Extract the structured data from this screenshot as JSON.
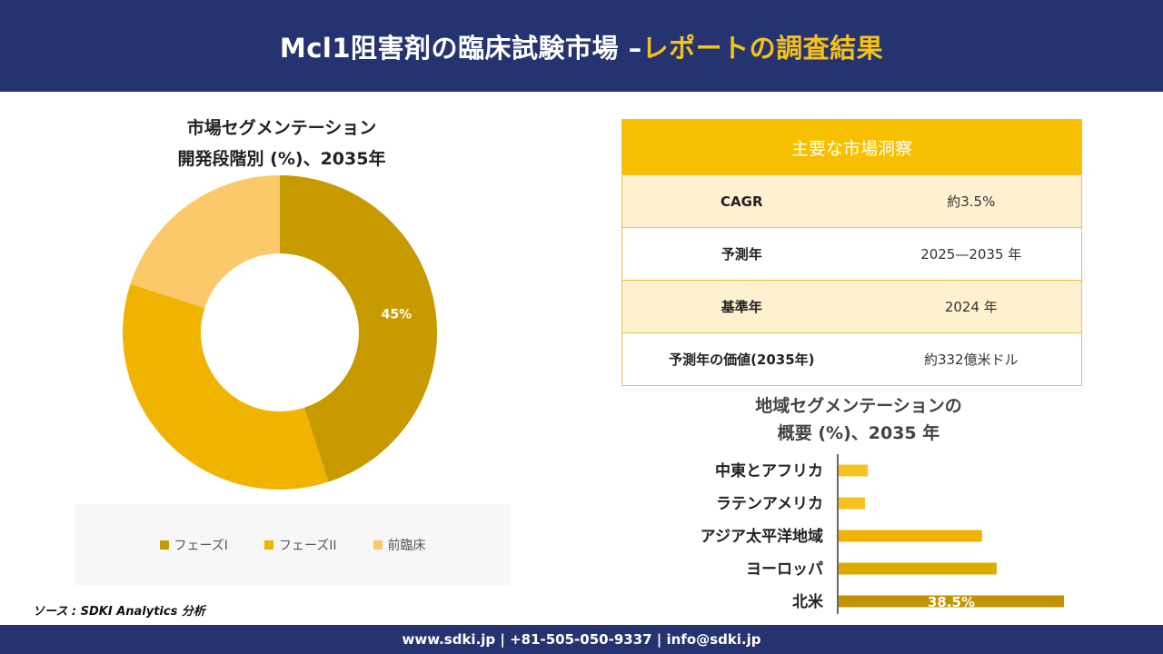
{
  "header": {
    "title_main": "Mcl1阻害剤の臨床試験市場 –",
    "title_accent": "レポートの調査結果"
  },
  "donut": {
    "title_line1": "市場セグメンテーション",
    "title_line2": "開発段階別 (%)、2035年"
  },
  "insights": {
    "heading": "主要な市場洞察",
    "rows": [
      {
        "key": "CAGR",
        "value": "約3.5%"
      },
      {
        "key": "予測年",
        "value": "2025—2035 年"
      },
      {
        "key": "基準年",
        "value": "2024 年"
      },
      {
        "key": "予測年の価値(2035年)",
        "value": "約332億米ドル"
      }
    ]
  },
  "region": {
    "title_line1": "地域セグメンテーションの",
    "title_line2": "概要 (%)、2035 年"
  },
  "source": "ソース : SDKI Analytics 分析",
  "footer": "www.sdki.jp | +81-505-050-9337 | info@sdki.jp",
  "chart_data": [
    {
      "type": "pie",
      "title": "市場セグメンテーション 開発段階別 (%)、2035年",
      "categories": [
        "フェーズI",
        "フェーズII",
        "前臨床"
      ],
      "values": [
        45,
        35,
        20
      ],
      "data_labels": [
        "45%",
        "",
        ""
      ],
      "colors": [
        "#c79a00",
        "#f0b400",
        "#fcc96a"
      ],
      "legend_position": "bottom"
    },
    {
      "type": "bar",
      "orientation": "horizontal",
      "title": "地域セグメンテーションの 概要 (%)、2035 年",
      "categories": [
        "中東とアフリカ",
        "ラテンアメリカ",
        "アジア太平洋地域",
        "ヨーロッパ",
        "北米"
      ],
      "values": [
        5,
        4.5,
        24.5,
        27,
        38.5
      ],
      "data_labels": [
        "",
        "",
        "",
        "",
        "38.5%"
      ],
      "colors": [
        "#f7c21f",
        "#f7c21f",
        "#f0b400",
        "#ddaa00",
        "#c39200"
      ]
    }
  ]
}
